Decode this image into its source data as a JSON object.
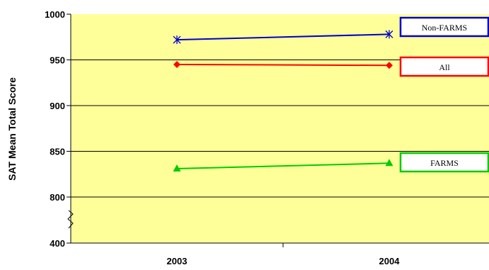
{
  "chart_data": {
    "type": "line",
    "title": "",
    "xlabel": "",
    "ylabel": "SAT Mean Total Score",
    "categories": [
      "2003",
      "2004"
    ],
    "y_ticks": [
      "1000",
      "950",
      "900",
      "850",
      "800",
      "400"
    ],
    "y_axis_break": true,
    "ylim_upper": [
      800,
      1000
    ],
    "ylim_lower": 400,
    "grid": true,
    "plot_background": "#FFFF99",
    "legend_placement": "right, inline labels",
    "series": [
      {
        "name": "Non-FARMS",
        "values": [
          972,
          978
        ],
        "color": "#0000CC",
        "marker": "asterisk"
      },
      {
        "name": "All",
        "values": [
          945,
          944
        ],
        "color": "#FF0000",
        "marker": "diamond"
      },
      {
        "name": "FARMS",
        "values": [
          831,
          837
        ],
        "color": "#00CC00",
        "marker": "triangle"
      }
    ]
  }
}
